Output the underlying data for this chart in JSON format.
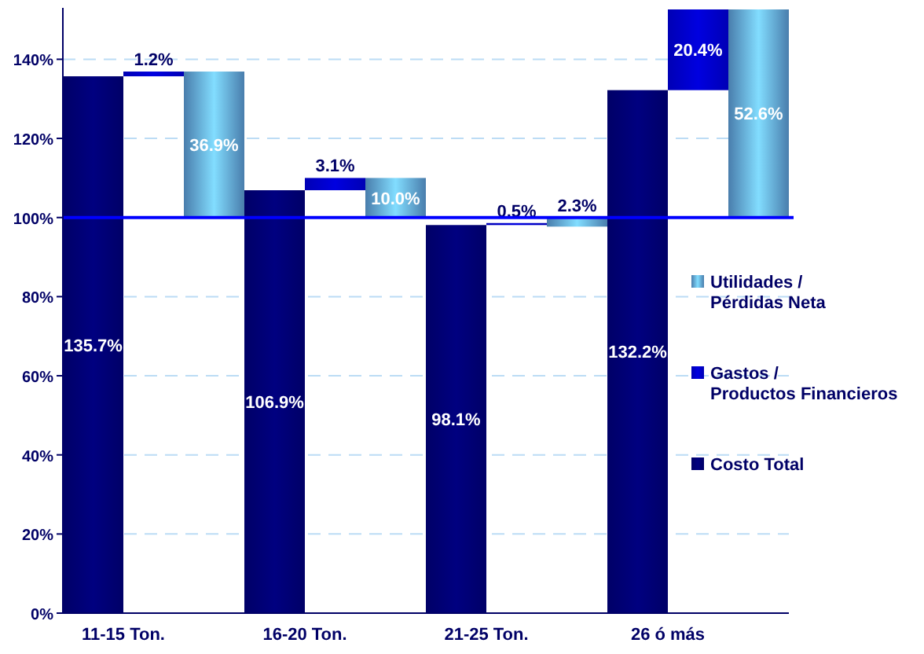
{
  "chart_data": {
    "type": "bar",
    "categories": [
      "11-15 Ton.",
      "16-20 Ton.",
      "21-25 Ton.",
      "26 ó más"
    ],
    "series": [
      {
        "name": "Costo Total",
        "color": "#000080",
        "values": [
          135.7,
          106.9,
          98.1,
          132.2
        ],
        "base": [
          0,
          0,
          0,
          0
        ],
        "value_labels": [
          "135.7%",
          "106.9%",
          "98.1%",
          "132.2%"
        ]
      },
      {
        "name": "Gastos / Productos Financieros",
        "color": "#0000e0",
        "values": [
          1.2,
          3.1,
          0.5,
          20.4
        ],
        "base": [
          135.7,
          106.9,
          98.1,
          132.2
        ],
        "value_labels": [
          "1.2%",
          "3.1%",
          "0.5%",
          "20.4%"
        ]
      },
      {
        "name": "Utilidades / Pérdidas Neta",
        "color": "#5b9bd5",
        "values": [
          36.9,
          10.0,
          2.3,
          52.6
        ],
        "base": [
          100,
          100,
          97.7,
          100
        ],
        "value_labels": [
          "36.9%",
          "10.0%",
          "2.3%",
          "52.6%"
        ]
      }
    ],
    "ylim": [
      0,
      153
    ],
    "yticks": [
      {
        "value": 0,
        "label": "0%"
      },
      {
        "value": 20,
        "label": "20%"
      },
      {
        "value": 40,
        "label": "40%"
      },
      {
        "value": 60,
        "label": "60%"
      },
      {
        "value": 80,
        "label": "80%"
      },
      {
        "value": 100,
        "label": "100%"
      },
      {
        "value": 120,
        "label": "120%"
      },
      {
        "value": 140,
        "label": "140%"
      }
    ],
    "grid": "y",
    "legend": "right",
    "ref_lines": [
      {
        "axis": "y",
        "value": 100,
        "color": "#0000ff"
      }
    ]
  }
}
